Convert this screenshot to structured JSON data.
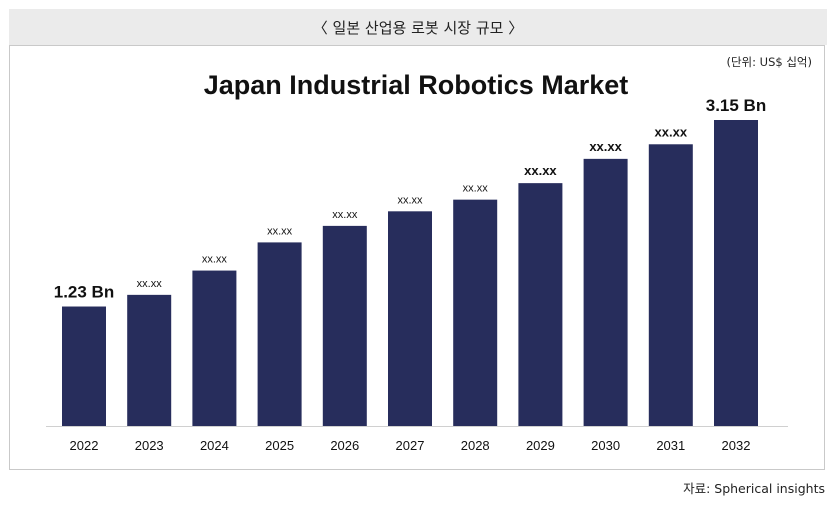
{
  "header": {
    "title": "〈 일본 산업용 로봇 시장 규모 〉"
  },
  "unit_note": "(단위: US$ 십억)",
  "source_note": "자료: Spherical insights",
  "colors": {
    "bar": "#272d5c",
    "header_bg": "#ebebeb"
  },
  "chart_data": {
    "type": "bar",
    "title": "Japan Industrial Robotics Market",
    "xlabel": "",
    "ylabel": "",
    "ylim": [
      0,
      3.5
    ],
    "grid": false,
    "categories": [
      "2022",
      "2023",
      "2024",
      "2025",
      "2026",
      "2027",
      "2028",
      "2029",
      "2030",
      "2031",
      "2032"
    ],
    "values": [
      1.23,
      1.35,
      1.6,
      1.89,
      2.06,
      2.21,
      2.33,
      2.5,
      2.75,
      2.9,
      3.15
    ],
    "data_labels": [
      "1.23 Bn",
      "xx.xx",
      "xx.xx",
      "xx.xx",
      "xx.xx",
      "xx.xx",
      "xx.xx",
      "xx.xx",
      "xx.xx",
      "xx.xx",
      "3.15 Bn"
    ]
  }
}
